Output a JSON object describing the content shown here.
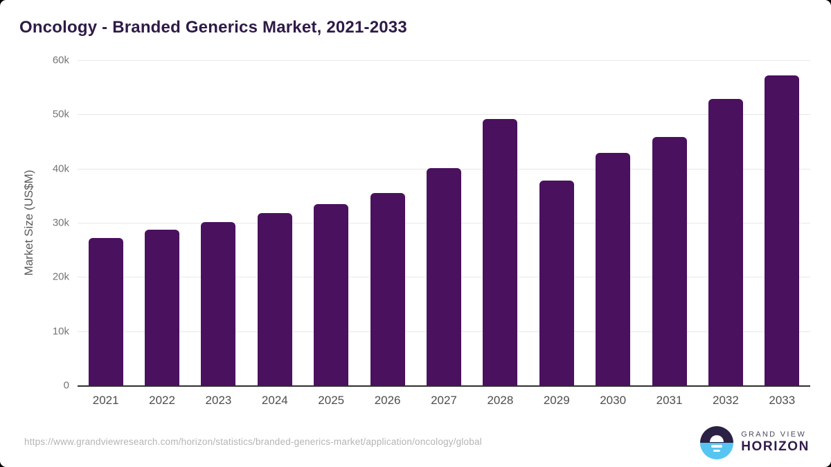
{
  "page": {
    "title": "Oncology - Branded Generics Market, 2021-2033"
  },
  "chart_data": {
    "type": "bar",
    "title": "Oncology - Branded Generics Market, 2021-2033",
    "categories": [
      "2021",
      "2022",
      "2023",
      "2024",
      "2025",
      "2026",
      "2027",
      "2028",
      "2029",
      "2030",
      "2031",
      "2032",
      "2033"
    ],
    "values": [
      27200,
      28700,
      30150,
      31800,
      33500,
      35450,
      40100,
      49200,
      37800,
      42850,
      45850,
      52900,
      57200
    ],
    "xlabel": "",
    "ylabel": "Market Size (US$M)",
    "ylim": [
      0,
      60000
    ],
    "ytick_interval": 10000,
    "ytick_labels": [
      "0",
      "10k",
      "20k",
      "30k",
      "40k",
      "50k",
      "60k"
    ],
    "grid": "horizontal",
    "legend": false
  },
  "colors": {
    "bar": "#4a115e",
    "title_text": "#2e1a47",
    "axis_line": "#2e2e2e",
    "gridline": "#e7e7e7",
    "ytick_text": "#757575",
    "xtick_text": "#4d4d4d",
    "url_text": "#b4b4b4",
    "logo_dark": "#2b2144",
    "logo_blue": "#56c5f1"
  },
  "footer": {
    "source_url": "https://www.grandviewresearch.com/horizon/statistics/branded-generics-market/application/oncology/global",
    "logo_line1": "GRAND VIEW",
    "logo_line2": "HORIZON"
  }
}
